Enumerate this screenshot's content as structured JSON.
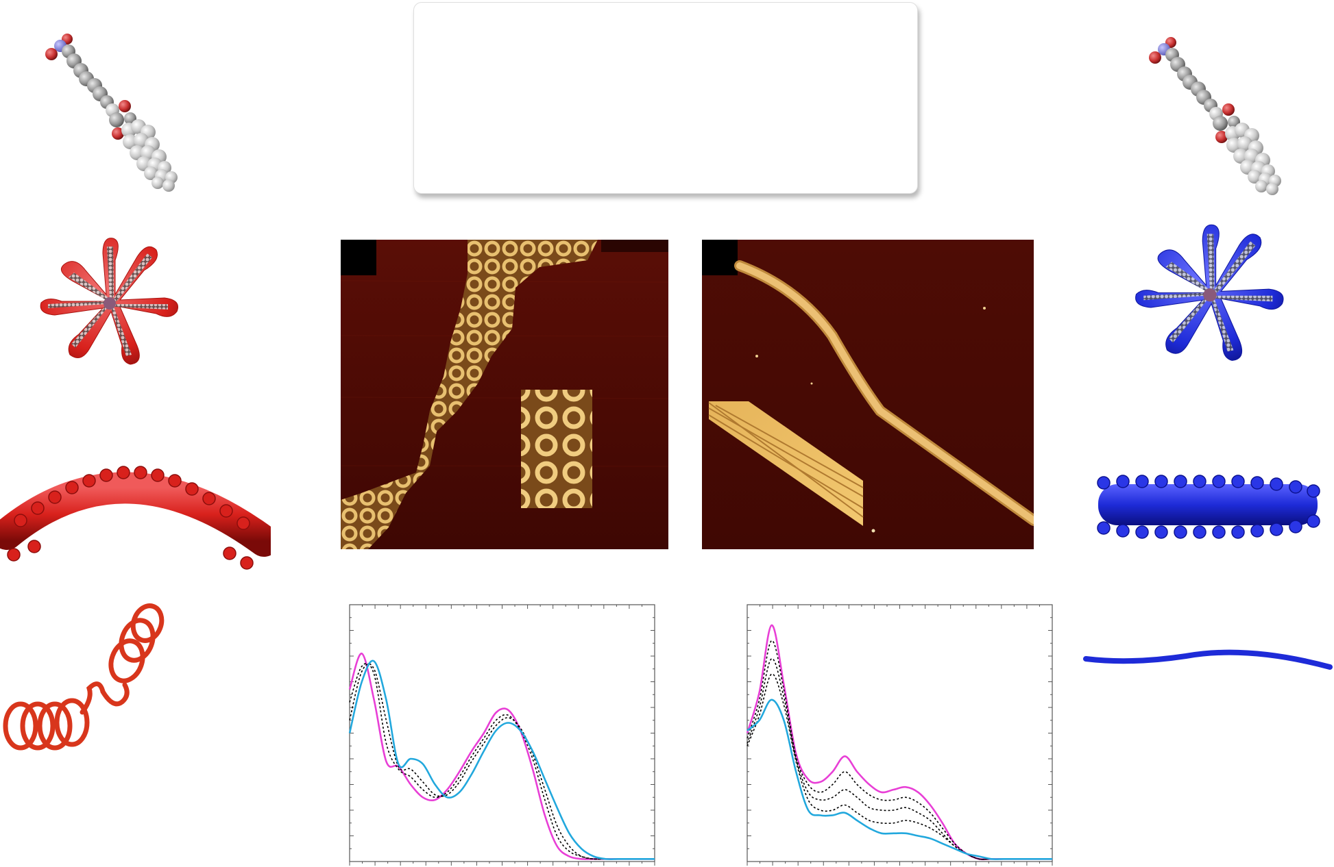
{
  "figure": {
    "label_box": {
      "text": ""
    },
    "left_column": {
      "color": "#d8211c",
      "items": [
        "molecule-icon",
        "star-micelle-icon",
        "curved-helical-bundle-icon",
        "coiled-helix-icon"
      ]
    },
    "right_column": {
      "color": "#1e2bd8",
      "items": [
        "molecule-icon",
        "star-micelle-icon",
        "straight-bundle-icon",
        "straight-fiber-icon"
      ]
    },
    "afm_images": [
      {
        "name": "afm-image-helical-coils",
        "inset": true
      },
      {
        "name": "afm-image-straight-fibers",
        "inset": true
      }
    ]
  },
  "chart_data": [
    {
      "type": "line",
      "xlabel": "",
      "ylabel": "",
      "grid": false,
      "x": [
        0,
        0.04,
        0.08,
        0.12,
        0.16,
        0.2,
        0.24,
        0.28,
        0.32,
        0.36,
        0.4,
        0.44,
        0.48,
        0.52,
        0.56,
        0.6,
        0.64,
        0.68,
        0.72,
        0.76,
        0.8,
        0.84,
        0.88,
        0.92,
        0.96,
        1.0
      ],
      "series": [
        {
          "color": "#e83fd6",
          "style": "solid",
          "values": [
            0.67,
            0.81,
            0.63,
            0.39,
            0.37,
            0.3,
            0.25,
            0.24,
            0.28,
            0.35,
            0.43,
            0.5,
            0.58,
            0.59,
            0.51,
            0.36,
            0.18,
            0.06,
            0.02,
            0.01,
            0.01,
            0.01,
            0.01,
            0.01,
            0.01,
            0.01
          ]
        },
        {
          "color": "#000000",
          "style": "dotted",
          "values": [
            0.62,
            0.76,
            0.73,
            0.46,
            0.36,
            0.33,
            0.28,
            0.25,
            0.27,
            0.33,
            0.41,
            0.48,
            0.55,
            0.57,
            0.51,
            0.4,
            0.24,
            0.1,
            0.04,
            0.02,
            0.01,
            0.01,
            0.01,
            0.01,
            0.01,
            0.01
          ]
        },
        {
          "color": "#000000",
          "style": "dotted",
          "values": [
            0.55,
            0.74,
            0.75,
            0.55,
            0.37,
            0.36,
            0.31,
            0.26,
            0.26,
            0.31,
            0.39,
            0.46,
            0.53,
            0.56,
            0.52,
            0.42,
            0.28,
            0.14,
            0.06,
            0.02,
            0.01,
            0.01,
            0.01,
            0.01,
            0.01,
            0.01
          ]
        },
        {
          "color": "#22a8dd",
          "style": "solid",
          "values": [
            0.5,
            0.7,
            0.78,
            0.63,
            0.38,
            0.4,
            0.38,
            0.3,
            0.25,
            0.27,
            0.34,
            0.43,
            0.51,
            0.54,
            0.51,
            0.43,
            0.32,
            0.21,
            0.11,
            0.05,
            0.02,
            0.01,
            0.01,
            0.01,
            0.01,
            0.01
          ]
        }
      ],
      "ylim": [
        0,
        1
      ],
      "xlim": [
        0,
        1
      ]
    },
    {
      "type": "line",
      "xlabel": "",
      "ylabel": "",
      "grid": false,
      "x": [
        0,
        0.04,
        0.08,
        0.12,
        0.16,
        0.2,
        0.24,
        0.28,
        0.32,
        0.36,
        0.4,
        0.44,
        0.48,
        0.52,
        0.56,
        0.6,
        0.64,
        0.68,
        0.72,
        0.76,
        0.8,
        0.84,
        0.88,
        0.92,
        0.96,
        1.0
      ],
      "series": [
        {
          "color": "#e83fd6",
          "style": "solid",
          "values": [
            0.5,
            0.66,
            0.92,
            0.69,
            0.42,
            0.32,
            0.31,
            0.35,
            0.41,
            0.35,
            0.3,
            0.27,
            0.28,
            0.29,
            0.27,
            0.22,
            0.15,
            0.07,
            0.03,
            0.01,
            0.01,
            0.01,
            0.01,
            0.01,
            0.01,
            0.01
          ]
        },
        {
          "color": "#000000",
          "style": "dotted",
          "values": [
            0.48,
            0.63,
            0.86,
            0.67,
            0.41,
            0.3,
            0.27,
            0.3,
            0.35,
            0.3,
            0.26,
            0.24,
            0.24,
            0.25,
            0.23,
            0.19,
            0.13,
            0.07,
            0.03,
            0.01,
            0.01,
            0.01,
            0.01,
            0.01,
            0.01,
            0.01
          ]
        },
        {
          "color": "#000000",
          "style": "dotted",
          "values": [
            0.46,
            0.6,
            0.79,
            0.64,
            0.4,
            0.27,
            0.24,
            0.25,
            0.28,
            0.25,
            0.21,
            0.2,
            0.2,
            0.21,
            0.19,
            0.16,
            0.11,
            0.06,
            0.03,
            0.01,
            0.01,
            0.01,
            0.01,
            0.01,
            0.01,
            0.01
          ]
        },
        {
          "color": "#000000",
          "style": "dotted",
          "values": [
            0.45,
            0.57,
            0.73,
            0.61,
            0.39,
            0.24,
            0.2,
            0.2,
            0.22,
            0.19,
            0.16,
            0.15,
            0.15,
            0.16,
            0.15,
            0.13,
            0.1,
            0.06,
            0.03,
            0.02,
            0.01,
            0.01,
            0.01,
            0.01,
            0.01,
            0.01
          ]
        },
        {
          "color": "#22a8dd",
          "style": "solid",
          "values": [
            0.51,
            0.55,
            0.63,
            0.55,
            0.35,
            0.2,
            0.18,
            0.18,
            0.19,
            0.16,
            0.13,
            0.11,
            0.11,
            0.11,
            0.1,
            0.09,
            0.07,
            0.05,
            0.03,
            0.02,
            0.01,
            0.01,
            0.01,
            0.01,
            0.01,
            0.01
          ]
        }
      ],
      "ylim": [
        0,
        1
      ],
      "xlim": [
        0,
        1
      ]
    }
  ]
}
